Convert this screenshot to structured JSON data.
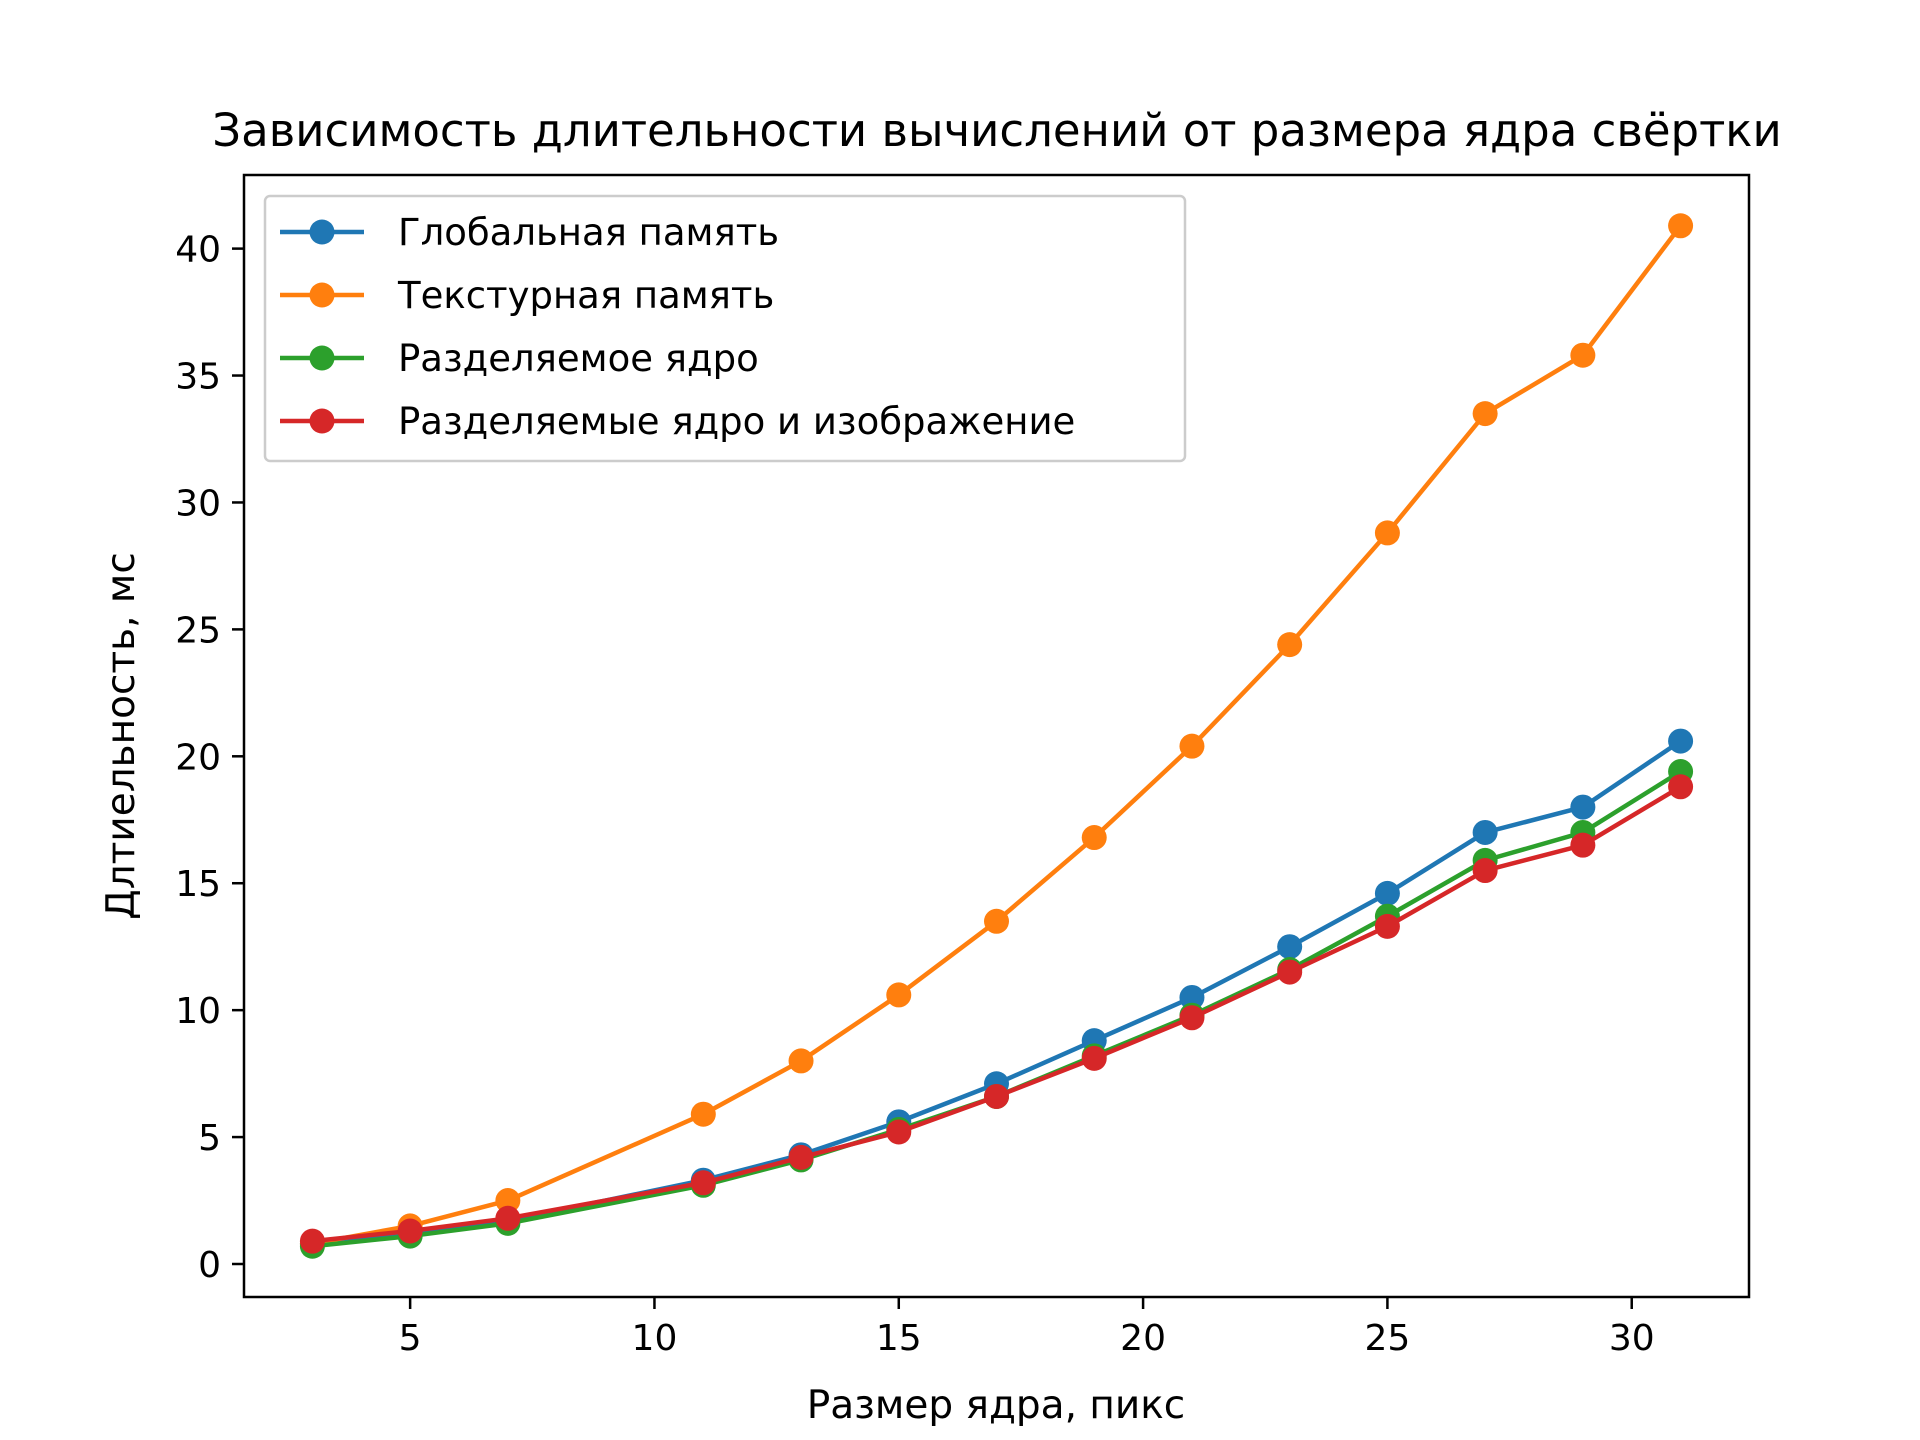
{
  "chart_data": {
    "type": "line",
    "title": "Зависимость длительности вычислений от размера ядра свёртки",
    "xlabel": "Размер ядра, пикс",
    "ylabel": "Длтиельность, мс",
    "xlim": [
      1.6,
      32.4
    ],
    "ylim": [
      -1.3,
      42.9
    ],
    "xticks": [
      5,
      10,
      15,
      20,
      25,
      30
    ],
    "yticks": [
      0,
      5,
      10,
      15,
      20,
      25,
      30,
      35,
      40
    ],
    "grid": false,
    "legend_position": "top-left",
    "x": [
      3,
      5,
      7,
      11,
      13,
      15,
      17,
      19,
      21,
      23,
      25,
      27,
      29,
      31
    ],
    "series": [
      {
        "name": "Глобальная память",
        "color": "#1f77b4",
        "values": [
          0.8,
          1.2,
          1.7,
          3.3,
          4.3,
          5.6,
          7.1,
          8.8,
          10.5,
          12.5,
          14.6,
          17.0,
          18.0,
          20.6
        ]
      },
      {
        "name": "Текстурная память",
        "color": "#ff7f0e",
        "values": [
          0.8,
          1.5,
          2.5,
          5.9,
          8.0,
          10.6,
          13.5,
          16.8,
          20.4,
          24.4,
          28.8,
          33.5,
          35.8,
          40.9
        ]
      },
      {
        "name": "Разделяемое ядро",
        "color": "#2ca02c",
        "values": [
          0.7,
          1.1,
          1.6,
          3.1,
          4.1,
          5.3,
          6.6,
          8.2,
          9.8,
          11.6,
          13.7,
          15.9,
          17.0,
          19.4
        ]
      },
      {
        "name": "Разделяемые ядро и изображение",
        "color": "#d62728",
        "values": [
          0.9,
          1.3,
          1.8,
          3.2,
          4.2,
          5.2,
          6.6,
          8.1,
          9.7,
          11.5,
          13.3,
          15.5,
          16.5,
          18.8
        ]
      }
    ]
  }
}
